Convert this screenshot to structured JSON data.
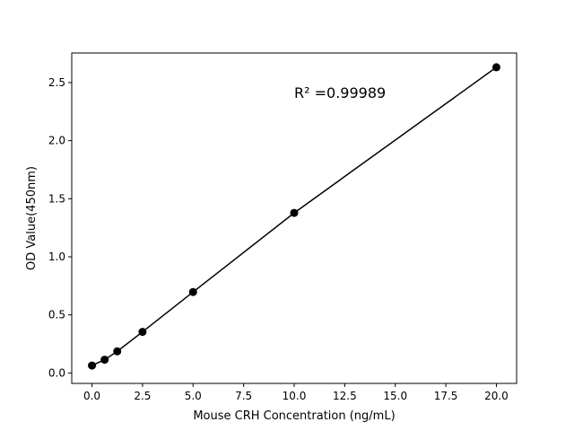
{
  "chart_data": {
    "type": "line",
    "title": "",
    "xlabel": "Mouse CRH Concentration (ng/mL)",
    "ylabel": "OD Value(450nm)",
    "xlim": [
      -1,
      21
    ],
    "ylim": [
      -0.09,
      2.755
    ],
    "xticks": [
      0,
      2.5,
      5,
      7.5,
      10,
      12.5,
      15,
      17.5,
      20
    ],
    "xtick_labels": [
      "0.0",
      "2.5",
      "5.0",
      "7.5",
      "10.0",
      "12.5",
      "15.0",
      "17.5",
      "20.0"
    ],
    "yticks": [
      0,
      0.5,
      1,
      1.5,
      2,
      2.5
    ],
    "ytick_labels": [
      "0.0",
      "0.5",
      "1.0",
      "1.5",
      "2.0",
      "2.5"
    ],
    "grid": false,
    "annotation": "R² =0.99989",
    "series": [
      {
        "x": [
          0,
          0.625,
          1.25,
          2.5,
          5,
          10,
          20
        ],
        "y": [
          0.064,
          0.114,
          0.186,
          0.354,
          0.697,
          1.378,
          2.632
        ],
        "color": "#000000",
        "marker": "circle"
      }
    ]
  }
}
